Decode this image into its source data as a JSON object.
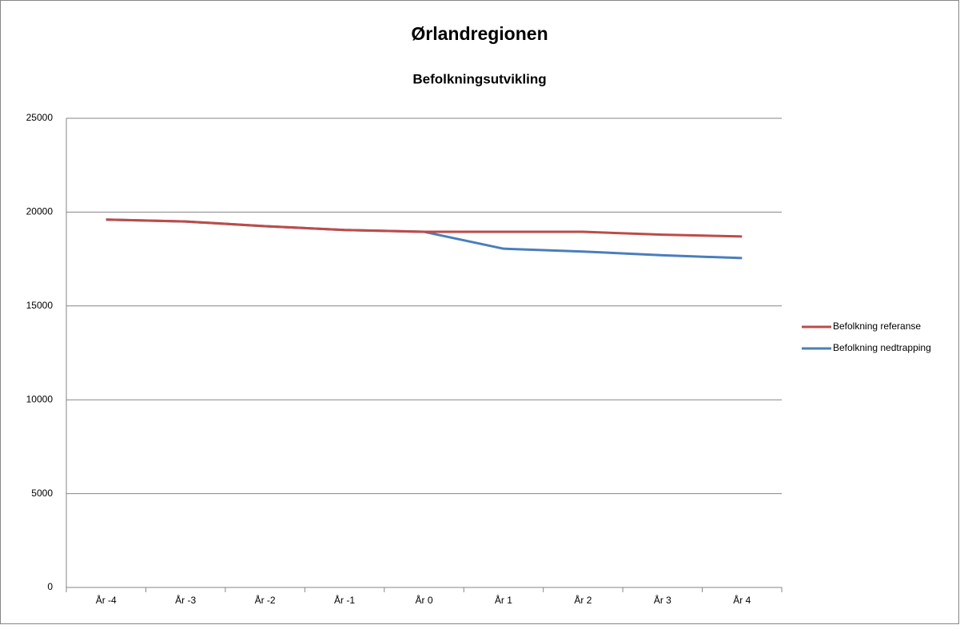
{
  "chart_data": {
    "type": "line",
    "title": "Ørlandregionen",
    "subtitle": "Befolkningsutvikling",
    "categories": [
      "År -4",
      "År -3",
      "År -2",
      "År -1",
      "År 0",
      "År 1",
      "År 2",
      "År 3",
      "År 4"
    ],
    "series": [
      {
        "name": "Befolkning referanse",
        "color": "#be4b48",
        "values": [
          19600,
          19500,
          19250,
          19050,
          18950,
          18950,
          18950,
          18800,
          18700
        ]
      },
      {
        "name": "Befolkning nedtrapping",
        "color": "#4a7ebb",
        "values": [
          19600,
          19500,
          19250,
          19050,
          18950,
          18050,
          17900,
          17700,
          17550
        ]
      }
    ],
    "ylim": [
      0,
      25000
    ],
    "yticks": [
      0,
      5000,
      10000,
      15000,
      20000,
      25000
    ],
    "grid": true,
    "legend": "right"
  }
}
